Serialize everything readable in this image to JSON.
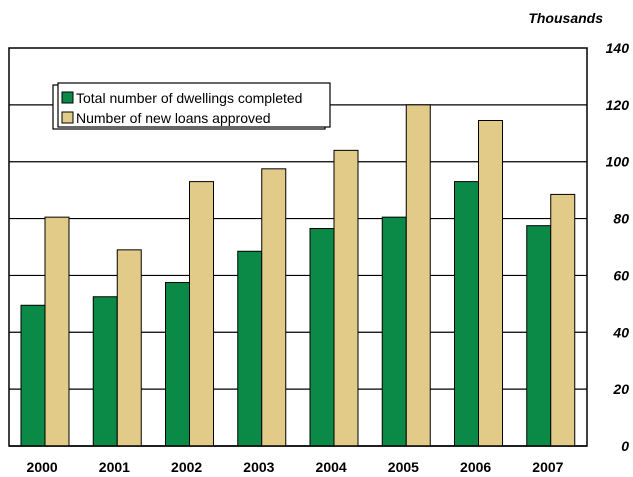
{
  "chart_data": {
    "type": "bar",
    "title": "",
    "ylabel": "Thousands",
    "xlabel": "",
    "categories": [
      "2000",
      "2001",
      "2002",
      "2003",
      "2004",
      "2005",
      "2006",
      "2007"
    ],
    "series": [
      {
        "name": "Total number of dwellings completed",
        "color": "#0a8a46",
        "values": [
          49.5,
          52.5,
          57.5,
          68.5,
          76.5,
          80.5,
          93,
          77.5
        ]
      },
      {
        "name": "Number of new loans approved",
        "color": "#e2cb88",
        "values": [
          80.5,
          69,
          93,
          97.5,
          104,
          120,
          114.5,
          88.5
        ]
      }
    ],
    "ylim": [
      0,
      140
    ],
    "yticks": [
      0,
      20,
      40,
      60,
      80,
      100,
      120,
      140
    ],
    "grid": true,
    "legend_position": "top-left"
  }
}
